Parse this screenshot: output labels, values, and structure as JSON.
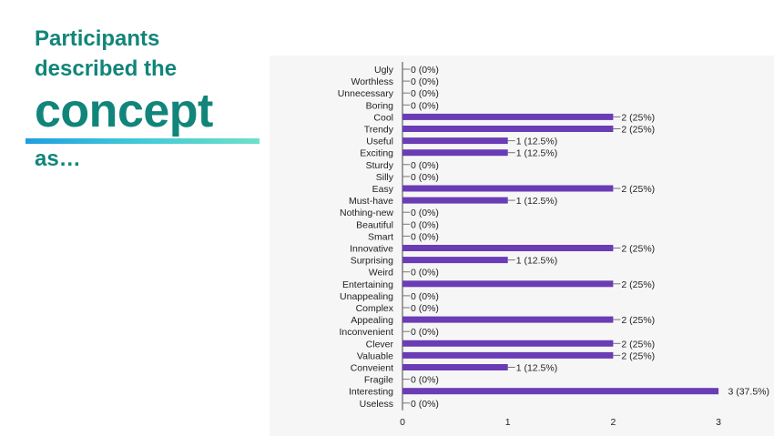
{
  "heading": {
    "line1": "Participants",
    "line2": "described the",
    "big": "concept",
    "line3": "as…"
  },
  "colors": {
    "heading": "#12857a",
    "bar": "#6a3cb5",
    "panel": "#f6f6f6"
  },
  "chart_data": {
    "type": "bar",
    "orientation": "horizontal",
    "title": "",
    "xlabel": "",
    "ylabel": "",
    "xlim": [
      0,
      3
    ],
    "xticks": [
      "0",
      "1",
      "2",
      "3"
    ],
    "grid": false,
    "categories": [
      "Ugly",
      "Worthless",
      "Unnecessary",
      "Boring",
      "Cool",
      "Trendy",
      "Useful",
      "Exciting",
      "Sturdy",
      "Silly",
      "Easy",
      "Must-have",
      "Nothing-new",
      "Beautiful",
      "Smart",
      "Innovative",
      "Surprising",
      "Weird",
      "Entertaining",
      "Unappealing",
      "Complex",
      "Appealing",
      "Inconvenient",
      "Clever",
      "Valuable",
      "Conveient",
      "Fragile",
      "Interesting",
      "Useless"
    ],
    "values": [
      0,
      0,
      0,
      0,
      2,
      2,
      1,
      1,
      0,
      0,
      2,
      1,
      0,
      0,
      0,
      2,
      1,
      0,
      2,
      0,
      0,
      2,
      0,
      2,
      2,
      1,
      0,
      3,
      0
    ],
    "labels": [
      "0 (0%)",
      "0 (0%)",
      "0 (0%)",
      "0 (0%)",
      "2 (25%)",
      "2 (25%)",
      "1 (12.5%)",
      "1 (12.5%)",
      "0 (0%)",
      "0 (0%)",
      "2 (25%)",
      "1 (12.5%)",
      "0 (0%)",
      "0 (0%)",
      "0 (0%)",
      "2 (25%)",
      "1 (12.5%)",
      "0 (0%)",
      "2 (25%)",
      "0 (0%)",
      "0 (0%)",
      "2 (25%)",
      "0 (0%)",
      "2 (25%)",
      "2 (25%)",
      "1 (12.5%)",
      "0 (0%)",
      "3 (37.5%)",
      "0 (0%)"
    ]
  }
}
